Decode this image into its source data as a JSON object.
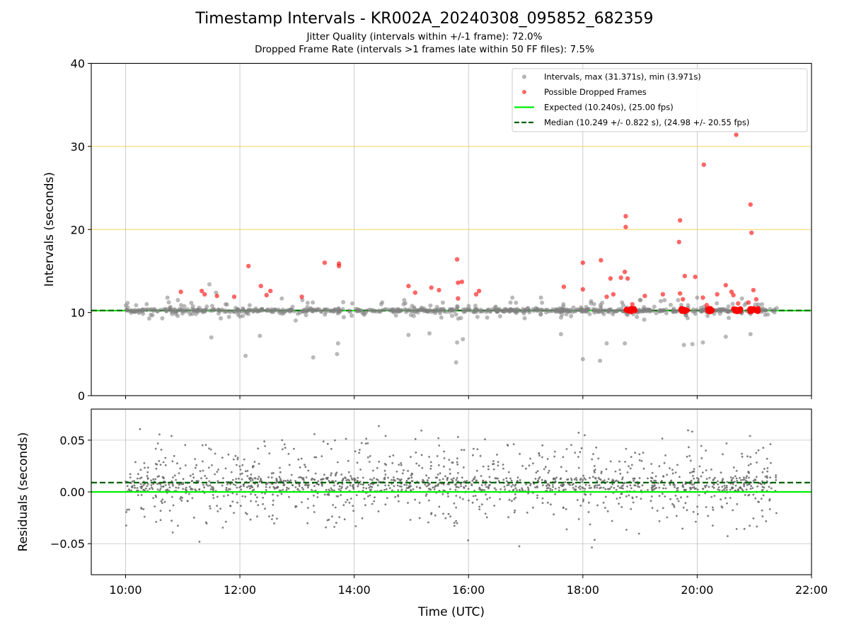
{
  "chart_data": [
    {
      "type": "scatter",
      "title": "Timestamp Intervals - KR002A_20240308_095852_682359",
      "subtitle_1": "Jitter Quality (intervals within +/-1 frame): 72.0%",
      "subtitle_2": "Dropped Frame Rate (intervals >1 frames late within 50 FF files): 7.5%",
      "ylabel": "Intervals (seconds)",
      "xlabel": "",
      "xlim": [
        "09:24",
        "22:00"
      ],
      "ylim": [
        0,
        40
      ],
      "yticks": [
        "0",
        "10",
        "20",
        "30",
        "40"
      ],
      "grid": true,
      "reference_lines": [
        20,
        30
      ],
      "legend_position": "top-right",
      "legend": {
        "intervals": "Intervals, max (31.371s), min (3.971s)",
        "dropped": "Possible Dropped Frames",
        "expected": "Expected (10.240s), (25.00 fps)",
        "median": "Median (10.249 +/- 0.822 s), (24.98 +/- 20.55 fps)"
      },
      "expected_interval": 10.24,
      "median_interval": 10.249,
      "colors": {
        "intervals": "#808080",
        "dropped": "#ff0000",
        "expected": "#00ee00",
        "median": "#006400",
        "reference": "#ffc933"
      },
      "series": [
        {
          "name": "Possible Dropped Frames",
          "points": [
            {
              "x": "10:58",
              "y": 12.5
            },
            {
              "x": "11:20",
              "y": 12.6
            },
            {
              "x": "11:23",
              "y": 12.2
            },
            {
              "x": "11:36",
              "y": 12.0
            },
            {
              "x": "11:54",
              "y": 11.9
            },
            {
              "x": "12:09",
              "y": 15.6
            },
            {
              "x": "12:22",
              "y": 13.2
            },
            {
              "x": "12:28",
              "y": 12.1
            },
            {
              "x": "12:32",
              "y": 12.6
            },
            {
              "x": "13:05",
              "y": 11.9
            },
            {
              "x": "13:29",
              "y": 16.0
            },
            {
              "x": "13:44",
              "y": 15.9
            },
            {
              "x": "13:44",
              "y": 15.6
            },
            {
              "x": "14:57",
              "y": 13.2
            },
            {
              "x": "15:04",
              "y": 12.4
            },
            {
              "x": "15:21",
              "y": 13.0
            },
            {
              "x": "15:29",
              "y": 12.7
            },
            {
              "x": "15:48",
              "y": 16.4
            },
            {
              "x": "15:49",
              "y": 13.6
            },
            {
              "x": "15:49",
              "y": 11.7
            },
            {
              "x": "15:53",
              "y": 13.7
            },
            {
              "x": "16:08",
              "y": 12.2
            },
            {
              "x": "16:11",
              "y": 12.6
            },
            {
              "x": "17:40",
              "y": 13.1
            },
            {
              "x": "18:00",
              "y": 16.0
            },
            {
              "x": "18:00",
              "y": 12.8
            },
            {
              "x": "18:19",
              "y": 16.3
            },
            {
              "x": "18:25",
              "y": 11.9
            },
            {
              "x": "18:29",
              "y": 14.1
            },
            {
              "x": "18:32",
              "y": 12.2
            },
            {
              "x": "18:40",
              "y": 14.2
            },
            {
              "x": "18:44",
              "y": 14.9
            },
            {
              "x": "18:45",
              "y": 21.6
            },
            {
              "x": "18:45",
              "y": 20.3
            },
            {
              "x": "18:47",
              "y": 14.1
            },
            {
              "x": "18:52",
              "y": 11.0
            },
            {
              "x": "19:05",
              "y": 12.0
            },
            {
              "x": "19:24",
              "y": 12.2
            },
            {
              "x": "19:41",
              "y": 18.5
            },
            {
              "x": "19:42",
              "y": 21.1
            },
            {
              "x": "19:42",
              "y": 12.3
            },
            {
              "x": "19:45",
              "y": 11.6
            },
            {
              "x": "19:47",
              "y": 14.4
            },
            {
              "x": "19:58",
              "y": 14.3
            },
            {
              "x": "20:07",
              "y": 27.8
            },
            {
              "x": "20:06",
              "y": 11.8
            },
            {
              "x": "20:10",
              "y": 10.9
            },
            {
              "x": "20:21",
              "y": 12.2
            },
            {
              "x": "20:30",
              "y": 13.3
            },
            {
              "x": "20:36",
              "y": 12.5
            },
            {
              "x": "20:38",
              "y": 12.1
            },
            {
              "x": "20:43",
              "y": 11.1
            },
            {
              "x": "20:41",
              "y": 31.4
            },
            {
              "x": "20:54",
              "y": 11.2
            },
            {
              "x": "20:56",
              "y": 23.0
            },
            {
              "x": "20:57",
              "y": 19.6
            },
            {
              "x": "20:59",
              "y": 12.7
            },
            {
              "x": "21:02",
              "y": 11.6
            }
          ],
          "clusters_near_10_4": [
            [
              "18:45",
              "18:55"
            ],
            [
              "19:42",
              "19:50"
            ],
            [
              "20:09",
              "20:16"
            ],
            [
              "20:38",
              "20:46"
            ],
            [
              "20:55",
              "21:05"
            ]
          ]
        },
        {
          "name": "Intervals, max (31.371s), min (3.971s)",
          "points": [
            {
              "x": "12:06",
              "y": 4.8
            },
            {
              "x": "13:17",
              "y": 4.6
            },
            {
              "x": "13:42",
              "y": 5.0
            },
            {
              "x": "13:43",
              "y": 6.3
            },
            {
              "x": "15:47",
              "y": 4.0
            },
            {
              "x": "15:48",
              "y": 6.4
            },
            {
              "x": "15:54",
              "y": 6.8
            },
            {
              "x": "18:00",
              "y": 4.4
            },
            {
              "x": "18:18",
              "y": 4.2
            },
            {
              "x": "18:25",
              "y": 6.3
            },
            {
              "x": "18:44",
              "y": 6.3
            },
            {
              "x": "19:46",
              "y": 6.1
            },
            {
              "x": "19:55",
              "y": 6.2
            },
            {
              "x": "20:06",
              "y": 6.4
            },
            {
              "x": "11:30",
              "y": 7.0
            },
            {
              "x": "12:21",
              "y": 7.2
            },
            {
              "x": "14:57",
              "y": 7.3
            },
            {
              "x": "15:19",
              "y": 7.5
            },
            {
              "x": "17:37",
              "y": 7.4
            },
            {
              "x": "20:30",
              "y": 7.1
            },
            {
              "x": "20:56",
              "y": 7.4
            },
            {
              "x": "11:28",
              "y": 13.4
            },
            {
              "x": "11:35",
              "y": 12.4
            },
            {
              "x": "10:55",
              "y": 11.5
            },
            {
              "x": "10:44",
              "y": 11.8
            },
            {
              "x": "11:45",
              "y": 11.0
            },
            {
              "x": "12:44",
              "y": 11.7
            },
            {
              "x": "13:58",
              "y": 11.1
            },
            {
              "x": "15:33",
              "y": 11.2
            },
            {
              "x": "16:46",
              "y": 11.8
            },
            {
              "x": "17:16",
              "y": 11.8
            },
            {
              "x": "19:00",
              "y": 11.5
            },
            {
              "x": "19:40",
              "y": 11.5
            },
            {
              "x": "20:00",
              "y": 11.8
            },
            {
              "x": "20:47",
              "y": 11.7
            },
            {
              "x": "21:08",
              "y": 11.0
            }
          ],
          "baseline_band": {
            "x_range": [
              "10:00",
              "21:24"
            ],
            "y_range": [
              9.9,
              10.5
            ]
          },
          "spread_band": {
            "x_range": [
              "10:00",
              "21:24"
            ],
            "y_range": [
              8.0,
              11.5
            ]
          }
        }
      ]
    },
    {
      "type": "scatter",
      "title": "",
      "xlabel": "Time (UTC)",
      "ylabel": "Residuals (seconds)",
      "xlim": [
        "09:24",
        "22:00"
      ],
      "ylim": [
        -0.08,
        0.08
      ],
      "xticks": [
        "10:00",
        "12:00",
        "14:00",
        "16:00",
        "18:00",
        "20:00",
        "22:00"
      ],
      "yticks": [
        "0.05",
        "0.00",
        "−0.05"
      ],
      "grid": true,
      "expected_residual": 0.0,
      "median_residual": 0.009,
      "residual_distribution": {
        "x_range": [
          "10:00",
          "21:24"
        ],
        "center": 0.009,
        "core_band": [
          0.0,
          0.014
        ],
        "range": [
          -0.08,
          0.08
        ],
        "point_count": 1600
      }
    }
  ]
}
